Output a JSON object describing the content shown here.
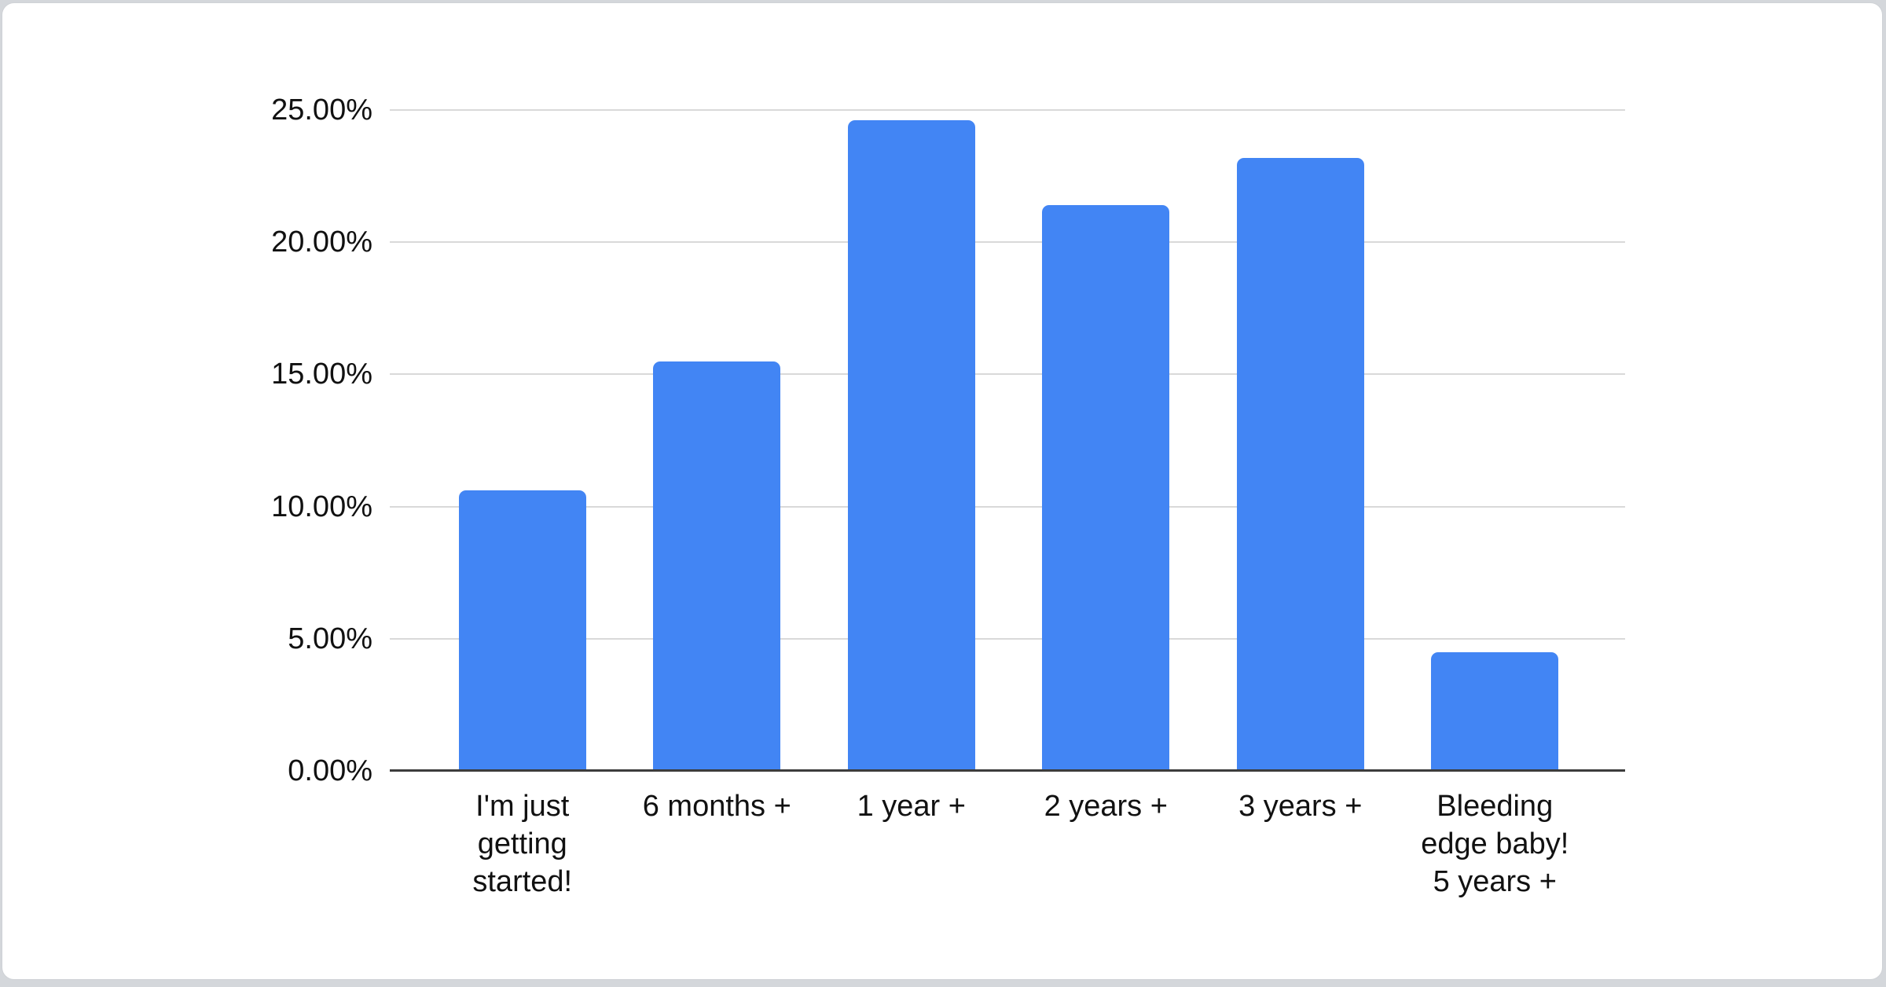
{
  "chart_data": {
    "type": "bar",
    "title": "",
    "xlabel": "",
    "ylabel": "",
    "categories": [
      "I'm just getting started!",
      "6 months +",
      "1 year +",
      "2 years +",
      "3 years +",
      "Bleeding edge baby! 5 years +"
    ],
    "category_lines": [
      [
        "I'm just",
        "getting",
        "started!"
      ],
      [
        "6 months +"
      ],
      [
        "1 year +"
      ],
      [
        "2 years +"
      ],
      [
        "3 years +"
      ],
      [
        "Bleeding",
        "edge baby!",
        "5 years +"
      ]
    ],
    "values": [
      10.6,
      15.5,
      24.6,
      21.4,
      23.2,
      4.5
    ],
    "value_format": "percent",
    "ylim": [
      0,
      25
    ],
    "y_tick_values": [
      25,
      20,
      15,
      10,
      5,
      0
    ],
    "y_tick_labels": [
      "25.00%",
      "20.00%",
      "15.00%",
      "10.00%",
      "5.00%",
      "0.00%"
    ],
    "grid": true,
    "legend": "none"
  },
  "colors": {
    "bar": "#4285F4",
    "gridline": "#d9d9d9",
    "axis": "#3c3c3c",
    "label_text": "#111111",
    "card_background": "#ffffff",
    "page_background": "#d4d7db"
  }
}
